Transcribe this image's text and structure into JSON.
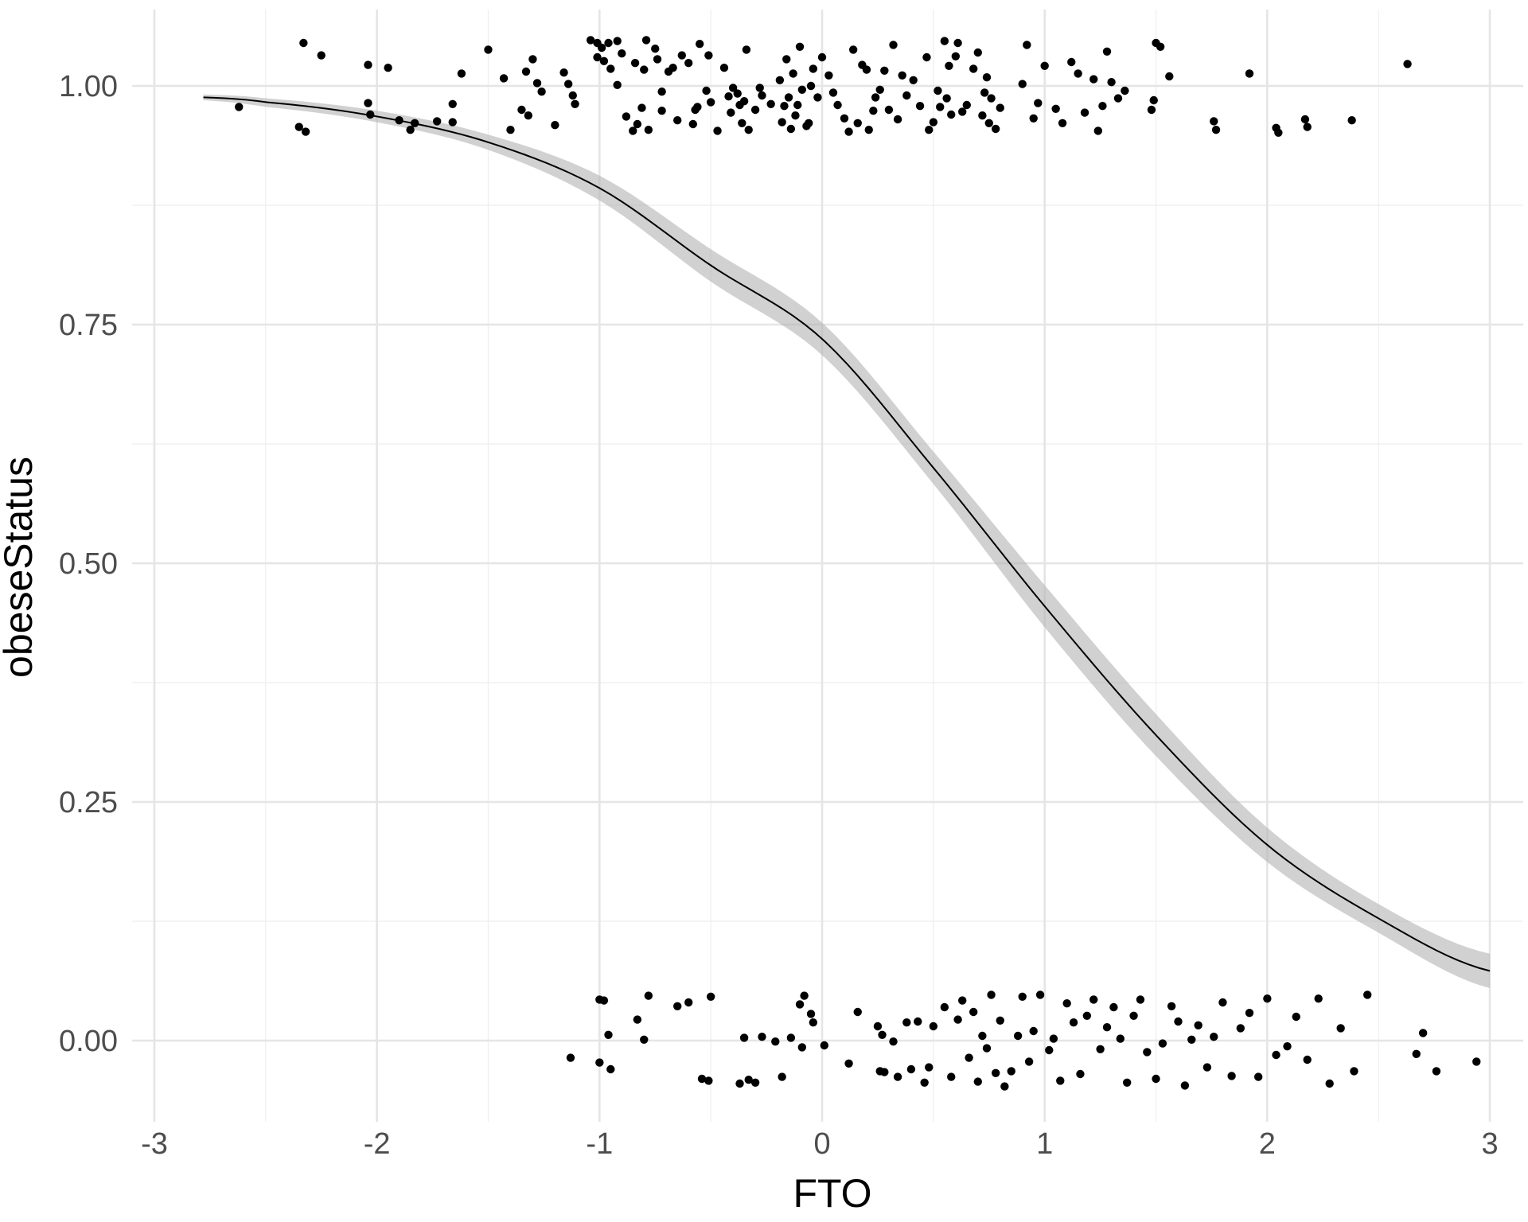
{
  "chart_data": {
    "type": "scatter",
    "xlabel": "FTO",
    "ylabel": "obeseStatus",
    "xlim": [
      -3.1,
      3.15
    ],
    "ylim": [
      -0.085,
      1.08
    ],
    "x_ticks": [
      {
        "value": -3,
        "label": "-3"
      },
      {
        "value": -2,
        "label": "-2"
      },
      {
        "value": -1,
        "label": "-1"
      },
      {
        "value": 0,
        "label": "0"
      },
      {
        "value": 1,
        "label": "1"
      },
      {
        "value": 2,
        "label": "2"
      },
      {
        "value": 3,
        "label": "3"
      }
    ],
    "y_ticks": [
      {
        "value": 0,
        "label": "0.00"
      },
      {
        "value": 0.25,
        "label": "0.25"
      },
      {
        "value": 0.5,
        "label": "0.50"
      },
      {
        "value": 0.75,
        "label": "0.75"
      },
      {
        "value": 1,
        "label": "1.00"
      }
    ],
    "grid": true,
    "legend": "none",
    "fit_curve": {
      "model": "logistic",
      "x_range": [
        -2.78,
        3.0
      ],
      "x": [
        -2.78,
        -2.5,
        -2.0,
        -1.5,
        -1.0,
        -0.5,
        0.0,
        0.5,
        1.0,
        1.5,
        2.0,
        2.5,
        3.0
      ],
      "y": [
        0.988,
        0.983,
        0.968,
        0.941,
        0.893,
        0.812,
        0.735,
        0.6,
        0.455,
        0.32,
        0.205,
        0.128,
        0.073
      ],
      "lower": [
        0.985,
        0.978,
        0.962,
        0.933,
        0.88,
        0.795,
        0.718,
        0.583,
        0.433,
        0.298,
        0.187,
        0.113,
        0.055
      ],
      "upper": [
        0.991,
        0.987,
        0.974,
        0.949,
        0.906,
        0.829,
        0.752,
        0.617,
        0.477,
        0.342,
        0.223,
        0.143,
        0.091
      ],
      "line_color": "#000000",
      "ribbon_color": "#b3b3b3"
    },
    "points": {
      "color": "#000000",
      "obese_x": [
        -2.62,
        -2.35,
        -2.33,
        -2.32,
        -2.25,
        -2.04,
        -2.04,
        -2.03,
        -1.95,
        -1.9,
        -1.85,
        -1.83,
        -1.73,
        -1.66,
        -1.66,
        -1.62,
        -1.5,
        -1.43,
        -1.4,
        -1.35,
        -1.33,
        -1.32,
        -1.3,
        -1.28,
        -1.26,
        -1.2,
        -1.16,
        -1.14,
        -1.12,
        -1.11,
        -1.04,
        -1.01,
        -1.01,
        -0.99,
        -0.98,
        -0.96,
        -0.95,
        -0.92,
        -0.92,
        -0.9,
        -0.88,
        -0.85,
        -0.84,
        -0.83,
        -0.81,
        -0.8,
        -0.79,
        -0.78,
        -0.75,
        -0.74,
        -0.72,
        -0.72,
        -0.69,
        -0.67,
        -0.65,
        -0.63,
        -0.6,
        -0.58,
        -0.57,
        -0.56,
        -0.55,
        -0.52,
        -0.51,
        -0.5,
        -0.47,
        -0.44,
        -0.42,
        -0.41,
        -0.4,
        -0.38,
        -0.37,
        -0.36,
        -0.35,
        -0.34,
        -0.33,
        -0.3,
        -0.28,
        -0.27,
        -0.23,
        -0.19,
        -0.18,
        -0.17,
        -0.16,
        -0.15,
        -0.14,
        -0.13,
        -0.12,
        -0.11,
        -0.1,
        -0.09,
        -0.07,
        -0.06,
        -0.05,
        -0.04,
        -0.02,
        0.0,
        0.03,
        0.05,
        0.07,
        0.1,
        0.12,
        0.14,
        0.16,
        0.18,
        0.2,
        0.21,
        0.23,
        0.24,
        0.26,
        0.28,
        0.3,
        0.32,
        0.34,
        0.36,
        0.38,
        0.41,
        0.44,
        0.47,
        0.48,
        0.5,
        0.52,
        0.53,
        0.55,
        0.56,
        0.57,
        0.58,
        0.6,
        0.61,
        0.63,
        0.65,
        0.68,
        0.7,
        0.72,
        0.73,
        0.74,
        0.75,
        0.76,
        0.78,
        0.8,
        0.9,
        0.92,
        0.95,
        0.97,
        1.0,
        1.05,
        1.08,
        1.12,
        1.15,
        1.18,
        1.22,
        1.24,
        1.26,
        1.28,
        1.3,
        1.33,
        1.36,
        1.48,
        1.49,
        1.5,
        1.52,
        1.56,
        1.76,
        1.77,
        1.92,
        2.04,
        2.05,
        2.17,
        2.18,
        2.38,
        2.63
      ],
      "obese_y": [
        0.978,
        0.957,
        1.045,
        0.952,
        1.032,
        0.982,
        1.022,
        0.97,
        1.019,
        0.964,
        0.954,
        0.961,
        0.963,
        0.962,
        0.981,
        1.013,
        1.038,
        1.008,
        0.954,
        0.975,
        1.015,
        0.969,
        1.028,
        1.003,
        0.994,
        0.959,
        1.014,
        1.002,
        0.99,
        0.981,
        1.048,
        1.03,
        1.045,
        1.04,
        1.026,
        1.045,
        1.018,
        1.001,
        1.047,
        1.034,
        0.968,
        0.953,
        1.024,
        0.96,
        0.977,
        1.017,
        1.048,
        0.954,
        1.039,
        1.028,
        0.974,
        0.994,
        1.015,
        1.019,
        0.964,
        1.032,
        1.024,
        0.96,
        0.975,
        0.978,
        1.044,
        0.995,
        1.032,
        0.983,
        0.953,
        1.019,
        0.989,
        0.972,
        0.998,
        0.992,
        0.98,
        0.961,
        0.984,
        1.038,
        0.954,
        0.975,
        0.998,
        0.99,
        0.981,
        1.006,
        0.962,
        0.979,
        1.028,
        0.988,
        0.955,
        1.013,
        0.969,
        0.98,
        1.041,
        0.996,
        0.958,
        0.961,
        1.0,
        1.018,
        0.988,
        1.03,
        1.011,
        0.993,
        0.98,
        0.966,
        0.952,
        1.038,
        0.961,
        1.022,
        1.017,
        0.954,
        0.974,
        0.988,
        0.996,
        1.016,
        0.975,
        1.043,
        0.965,
        1.011,
        0.99,
        1.006,
        0.979,
        1.03,
        0.954,
        0.962,
        0.995,
        0.978,
        1.047,
        0.987,
        1.021,
        0.97,
        1.031,
        1.045,
        0.973,
        0.98,
        1.018,
        1.035,
        0.969,
        0.993,
        1.009,
        0.961,
        0.987,
        0.955,
        0.977,
        1.002,
        1.043,
        0.966,
        0.982,
        1.021,
        0.976,
        0.961,
        1.025,
        1.013,
        0.972,
        1.007,
        0.953,
        0.979,
        1.036,
        1.004,
        0.987,
        0.995,
        0.975,
        0.985,
        1.045,
        1.041,
        1.01,
        0.963,
        0.954,
        1.013,
        0.956,
        0.951,
        0.965,
        0.957,
        0.964,
        1.023,
        0.967,
        1.032,
        1.045
      ],
      "nonobese_x": [
        -1.13,
        -1.0,
        -1.0,
        -0.98,
        -0.96,
        -0.95,
        -0.83,
        -0.8,
        -0.78,
        -0.65,
        -0.6,
        -0.54,
        -0.51,
        -0.5,
        -0.37,
        -0.35,
        -0.33,
        -0.3,
        -0.27,
        -0.21,
        -0.18,
        -0.14,
        -0.1,
        -0.09,
        -0.08,
        -0.05,
        -0.04,
        0.01,
        0.12,
        0.16,
        0.25,
        0.26,
        0.27,
        0.28,
        0.32,
        0.34,
        0.38,
        0.4,
        0.43,
        0.46,
        0.48,
        0.5,
        0.55,
        0.58,
        0.61,
        0.63,
        0.66,
        0.68,
        0.7,
        0.72,
        0.74,
        0.76,
        0.78,
        0.8,
        0.82,
        0.85,
        0.88,
        0.9,
        0.93,
        0.95,
        0.98,
        1.02,
        1.04,
        1.07,
        1.1,
        1.13,
        1.16,
        1.19,
        1.22,
        1.25,
        1.28,
        1.31,
        1.34,
        1.37,
        1.4,
        1.43,
        1.46,
        1.5,
        1.53,
        1.57,
        1.6,
        1.63,
        1.66,
        1.69,
        1.73,
        1.76,
        1.8,
        1.84,
        1.88,
        1.92,
        1.96,
        2.0,
        2.04,
        2.09,
        2.13,
        2.18,
        2.23,
        2.28,
        2.33,
        2.39,
        2.45,
        2.67,
        2.7,
        2.76,
        2.94
      ],
      "nonobese_y": [
        -0.018,
        0.043,
        -0.023,
        0.042,
        0.006,
        -0.03,
        0.022,
        0.001,
        0.047,
        0.036,
        0.04,
        -0.04,
        -0.042,
        0.046,
        -0.045,
        0.003,
        -0.041,
        -0.044,
        0.004,
        -0.001,
        -0.038,
        0.003,
        0.038,
        -0.007,
        0.047,
        0.028,
        0.019,
        -0.005,
        -0.024,
        0.03,
        0.015,
        -0.032,
        0.006,
        -0.033,
        -0.001,
        -0.038,
        0.019,
        -0.03,
        0.02,
        -0.044,
        -0.028,
        0.015,
        0.035,
        -0.038,
        0.022,
        0.042,
        -0.018,
        0.03,
        -0.043,
        0.005,
        -0.008,
        0.048,
        -0.034,
        0.021,
        -0.048,
        -0.032,
        0.005,
        0.046,
        -0.022,
        0.01,
        0.048,
        -0.01,
        0.002,
        -0.042,
        0.039,
        0.019,
        -0.035,
        0.026,
        0.043,
        -0.009,
        0.014,
        0.035,
        0.002,
        -0.044,
        0.026,
        0.043,
        -0.012,
        -0.04,
        -0.003,
        0.036,
        0.02,
        -0.047,
        0.001,
        0.016,
        -0.028,
        0.004,
        0.04,
        -0.037,
        0.013,
        0.029,
        -0.038,
        0.044,
        -0.015,
        -0.006,
        0.025,
        -0.02,
        0.044,
        -0.045,
        0.013,
        -0.032,
        0.048,
        -0.014,
        0.008,
        -0.032,
        -0.022
      ]
    }
  }
}
